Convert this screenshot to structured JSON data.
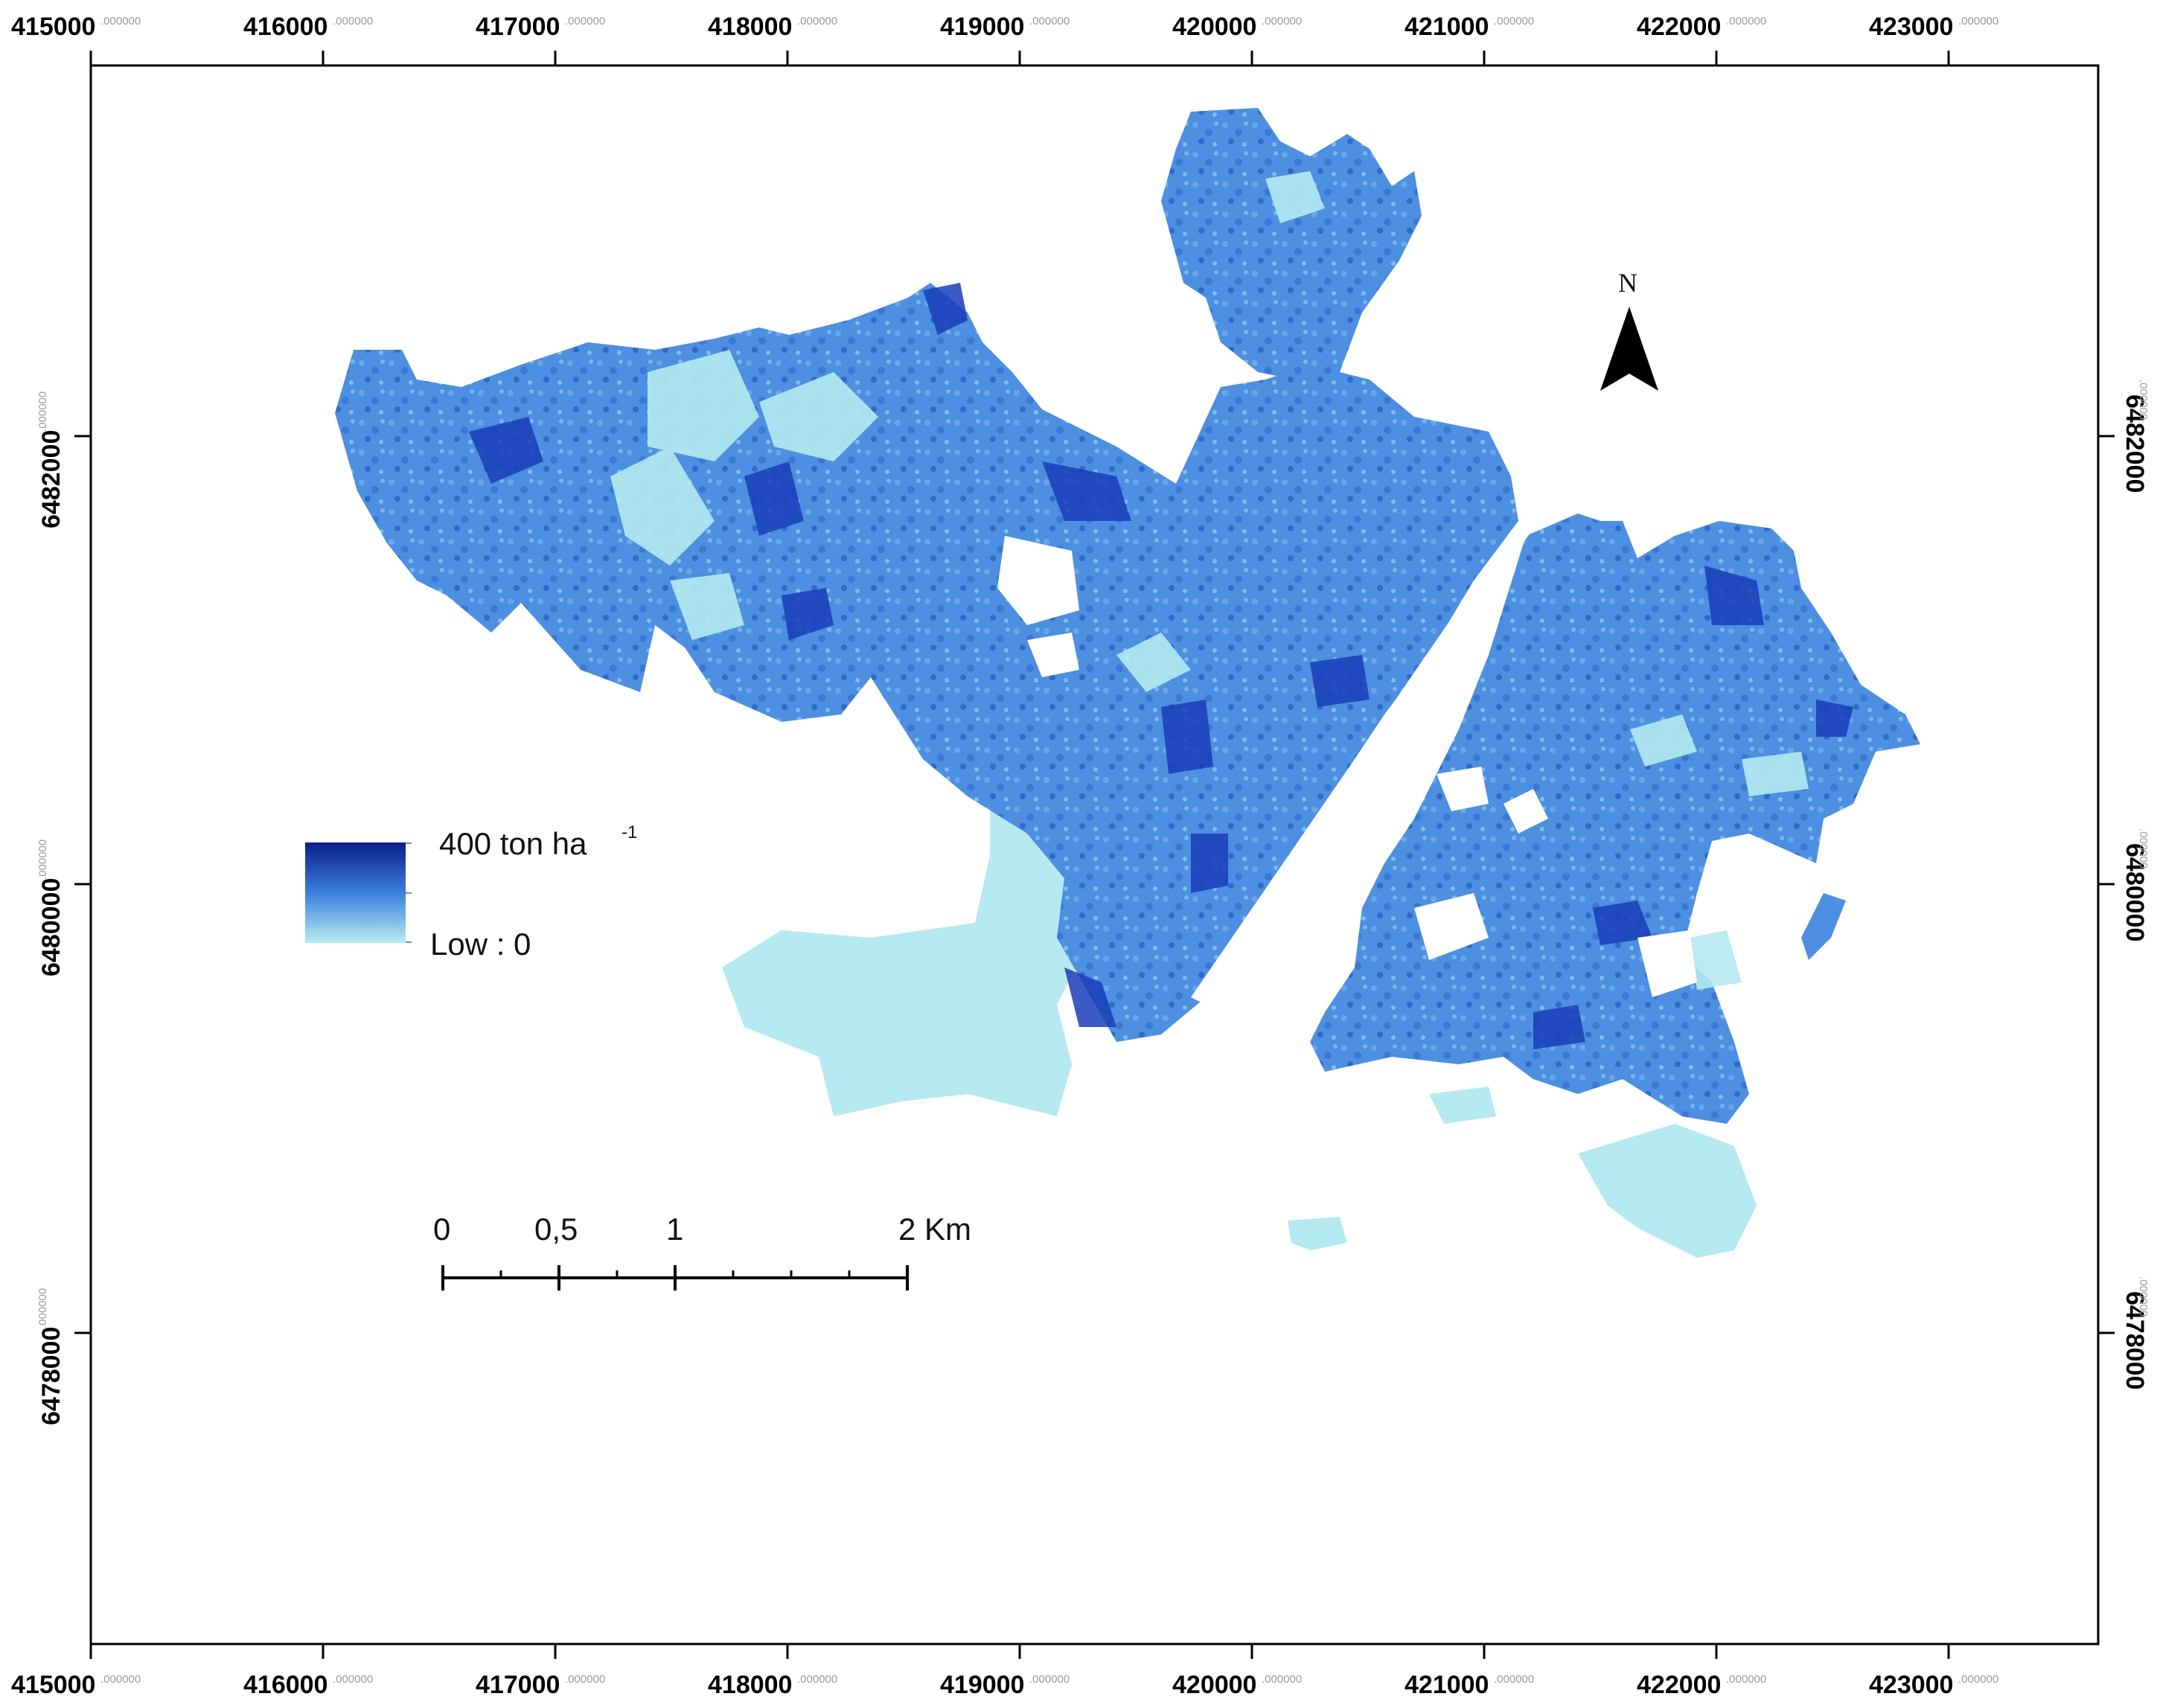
{
  "map": {
    "x_axis": {
      "ticks": [
        {
          "label": "415000",
          "suffix": ".000000"
        },
        {
          "label": "416000",
          "suffix": ".000000"
        },
        {
          "label": "417000",
          "suffix": ".000000"
        },
        {
          "label": "418000",
          "suffix": ".000000"
        },
        {
          "label": "419000",
          "suffix": ".000000"
        },
        {
          "label": "420000",
          "suffix": ".000000"
        },
        {
          "label": "421000",
          "suffix": ".000000"
        },
        {
          "label": "422000",
          "suffix": ".000000"
        },
        {
          "label": "423000",
          "suffix": ".000000"
        }
      ]
    },
    "y_axis": {
      "ticks": [
        {
          "label": "6482000",
          "suffix": ".000000"
        },
        {
          "label": "6480000",
          "suffix": ".000000"
        },
        {
          "label": "6478000",
          "suffix": ".000000"
        }
      ]
    },
    "legend": {
      "high_label": "400 ton ha",
      "high_unit_exponent": "-1",
      "low_label": "Low : 0",
      "color_high": "#0b1e8c",
      "color_mid": "#3a7fdc",
      "color_low": "#b8ecf2"
    },
    "north_arrow": {
      "label": "N"
    },
    "scale_bar": {
      "labels": [
        "0",
        "0,5",
        "1",
        "2 Km"
      ],
      "units": "Km"
    },
    "colors": {
      "biomass_light": "#b5eaf0",
      "biomass_medium": "#4f93e0",
      "biomass_dark": "#1a3db8",
      "frame": "#000000"
    }
  }
}
